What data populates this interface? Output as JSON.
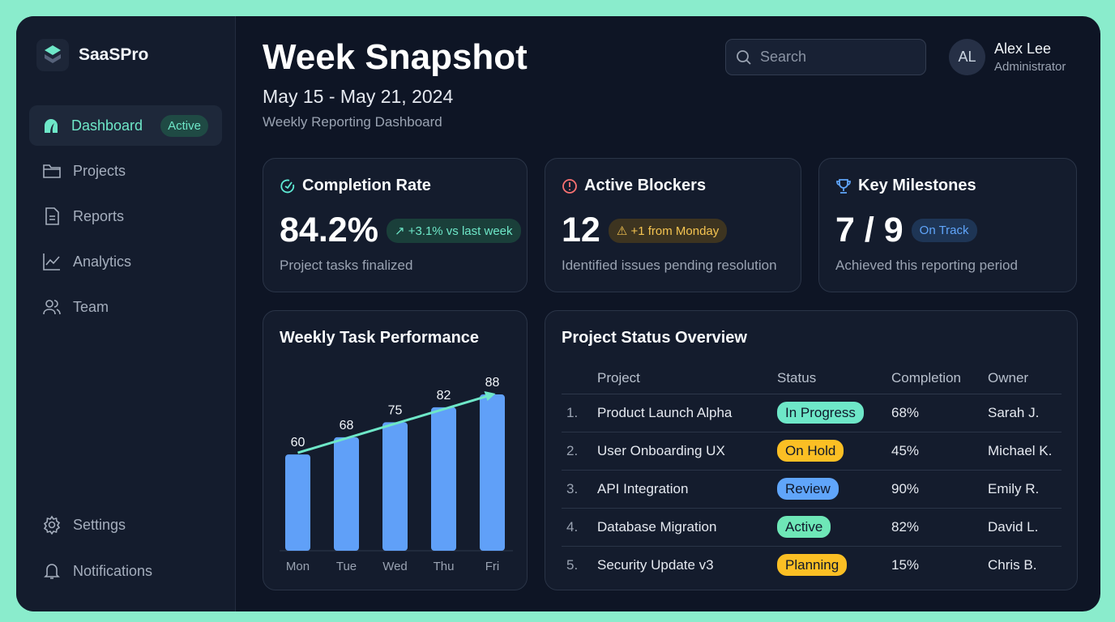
{
  "app": {
    "name": "SaaSPro"
  },
  "sidebar": {
    "items": [
      {
        "label": "Dashboard",
        "badge": "Active",
        "icon": "gauge-icon"
      },
      {
        "label": "Projects",
        "icon": "folder-icon"
      },
      {
        "label": "Reports",
        "icon": "file-icon"
      },
      {
        "label": "Analytics",
        "icon": "chart-line-icon"
      },
      {
        "label": "Team",
        "icon": "users-icon"
      }
    ],
    "bottom": [
      {
        "label": "Settings",
        "icon": "gear-icon"
      },
      {
        "label": "Notifications",
        "icon": "bell-icon"
      }
    ]
  },
  "header": {
    "title": "Week Snapshot",
    "date_range": "May 15 - May 21, 2024",
    "subtitle": "Weekly Reporting Dashboard",
    "search_placeholder": "Search"
  },
  "user": {
    "initials": "AL",
    "name": "Alex Lee",
    "role": "Administrator"
  },
  "kpis": [
    {
      "title": "Completion Rate",
      "value": "84.2%",
      "badge": "+3.1% vs last week",
      "desc": "Project tasks finalized",
      "color": "#6ee7c8"
    },
    {
      "title": "Active Blockers",
      "value": "12",
      "badge": "+1 from Monday",
      "desc": "Identified issues pending resolution",
      "color": "#f5c451"
    },
    {
      "title": "Key Milestones",
      "value": "7 / 9",
      "badge": "On Track",
      "desc": "Achieved this reporting period",
      "color": "#60a5fa"
    }
  ],
  "chart_data": {
    "type": "bar",
    "title": "Weekly Task Performance",
    "categories": [
      "Mon",
      "Tue",
      "Wed",
      "Thu",
      "Fri"
    ],
    "values": [
      60,
      68,
      75,
      82,
      88
    ],
    "ylim": [
      15,
      90
    ],
    "grid": false,
    "trend_line": true,
    "bar_color": "#60a0f8",
    "trend_color": "#6ee7c8"
  },
  "table": {
    "title": "Project Status Overview",
    "headers": [
      "",
      "Project",
      "Status",
      "Completion",
      "Owner"
    ],
    "rows": [
      [
        "1.",
        "Product Launch Alpha",
        "In Progress",
        "68%",
        "Sarah J."
      ],
      [
        "2.",
        "User Onboarding UX",
        "On Hold",
        "45%",
        "Michael K."
      ],
      [
        "3.",
        "API Integration",
        "Review",
        "90%",
        "Emily R."
      ],
      [
        "4.",
        "Database Migration",
        "Active",
        "82%",
        "David L."
      ],
      [
        "5.",
        "Security Update v3",
        "Planning",
        "15%",
        "Chris B."
      ]
    ],
    "status_colors": {
      "In Progress": "#6ee7c8",
      "On Hold": "#fbbf24",
      "Review": "#60a5fa",
      "Active": "#6ee7b7",
      "Planning": "#fbbf24"
    }
  }
}
